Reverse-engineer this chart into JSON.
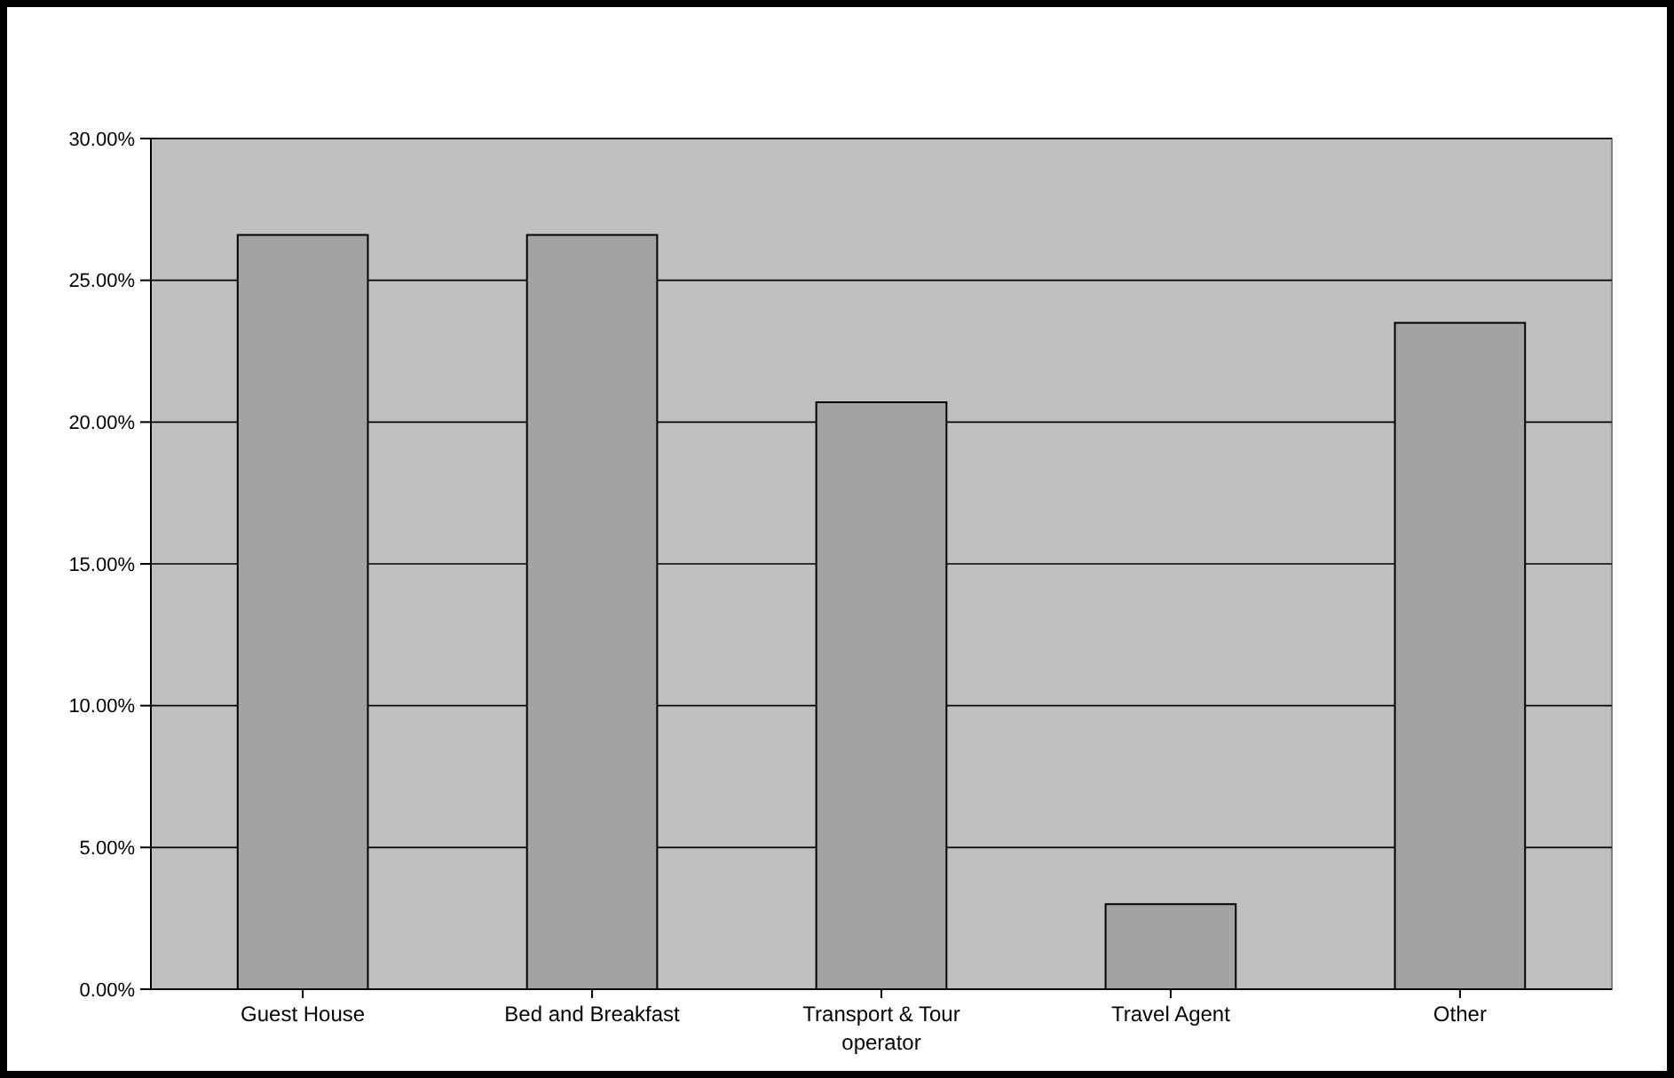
{
  "chart_data": {
    "type": "bar",
    "categories": [
      "Guest House",
      "Bed and Breakfast",
      "Transport & Tour operator",
      "Travel Agent",
      "Other"
    ],
    "values": [
      26.6,
      26.6,
      20.7,
      3.0,
      23.5
    ],
    "color": "#a3a3a3",
    "ylim": [
      0,
      30
    ],
    "yticks": [
      {
        "value": 0,
        "label": "0.00%"
      },
      {
        "value": 5,
        "label": "5.00%"
      },
      {
        "value": 10,
        "label": "10.00%"
      },
      {
        "value": 15,
        "label": "15.00%"
      },
      {
        "value": 20,
        "label": "20.00%"
      },
      {
        "value": 25,
        "label": "25.00%"
      },
      {
        "value": 30,
        "label": "30.00%"
      }
    ],
    "grid": "y"
  }
}
